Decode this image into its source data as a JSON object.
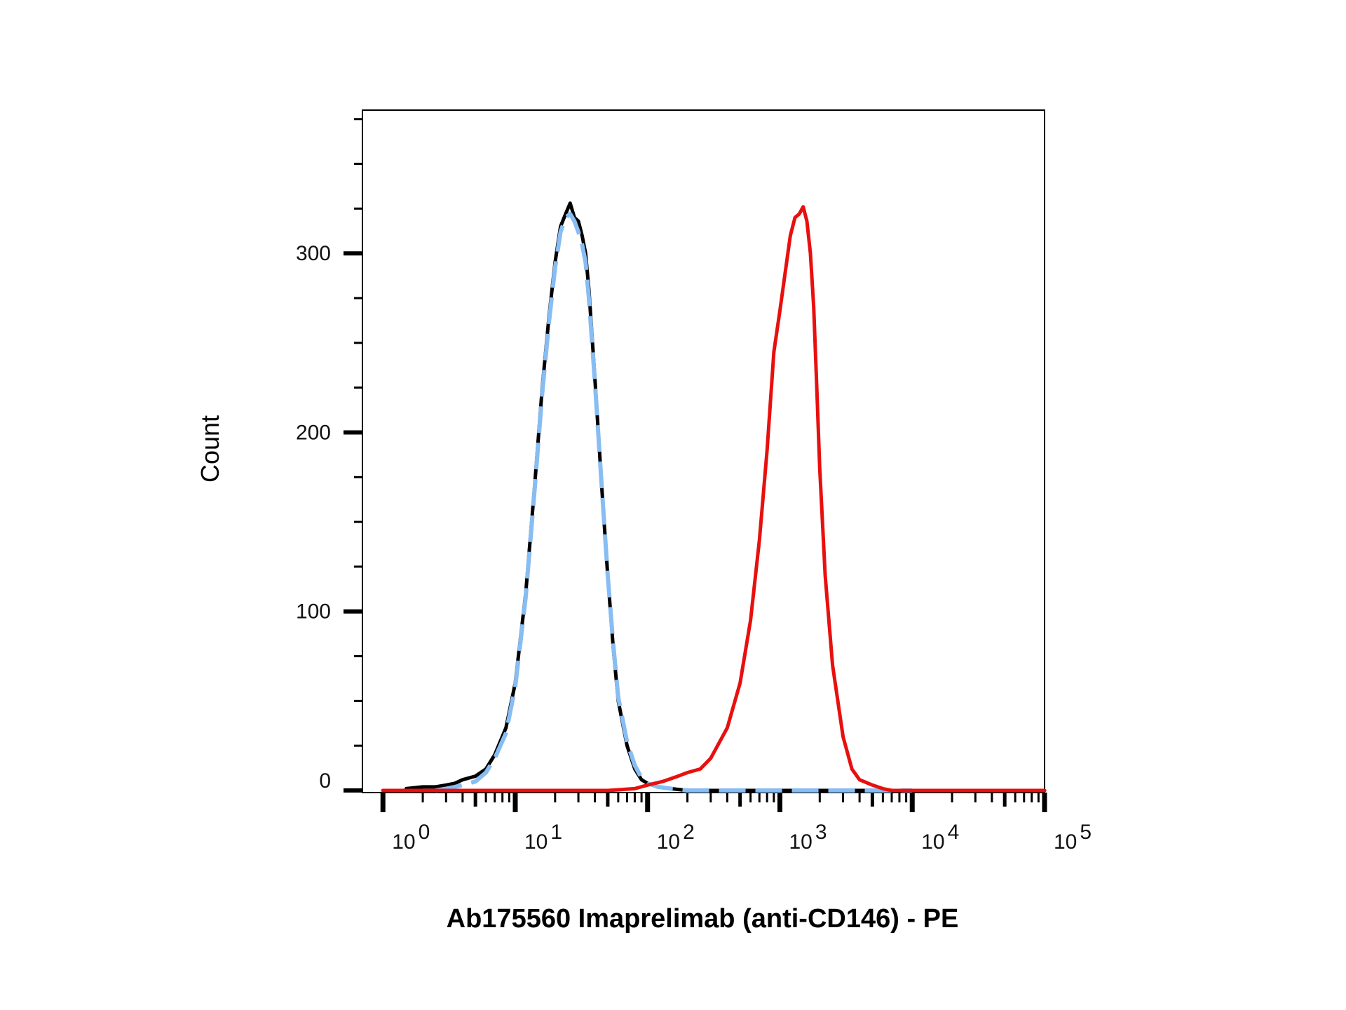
{
  "chart_data": {
    "type": "line",
    "title": "",
    "xlabel": "Ab175560 Imaprelimab (anti-CD146) - PE",
    "ylabel": "Count",
    "x_scale": "log",
    "xlim": [
      0.7,
      100000
    ],
    "ylim": [
      0,
      380
    ],
    "y_ticks": [
      0,
      100,
      200,
      300
    ],
    "x_ticks": [
      1,
      10,
      100,
      1000,
      10000,
      100000
    ],
    "x_tick_labels": [
      {
        "base": "10",
        "exp": "0"
      },
      {
        "base": "10",
        "exp": "1"
      },
      {
        "base": "10",
        "exp": "2"
      },
      {
        "base": "10",
        "exp": "3"
      },
      {
        "base": "10",
        "exp": "4"
      },
      {
        "base": "10",
        "exp": "5"
      }
    ],
    "grid": false,
    "legend": "none",
    "series": [
      {
        "color": "#000000",
        "style": "solid",
        "x": [
          1.5,
          2.0,
          2.5,
          3.0,
          3.5,
          4.0,
          5.0,
          6.0,
          7.0,
          8.5,
          10,
          12,
          14,
          16,
          18,
          20,
          22,
          24,
          26,
          28,
          30,
          32,
          34,
          36,
          40,
          45,
          50,
          55,
          60,
          70,
          80,
          90,
          100,
          120,
          150,
          200,
          300,
          500,
          1000,
          10000,
          100000
        ],
        "y": [
          1,
          2,
          2,
          3,
          4,
          6,
          8,
          12,
          20,
          35,
          60,
          110,
          170,
          225,
          265,
          295,
          315,
          322,
          328,
          320,
          318,
          310,
          300,
          280,
          230,
          170,
          120,
          80,
          50,
          25,
          12,
          6,
          4,
          2,
          1,
          0,
          0,
          0,
          0,
          0,
          0
        ]
      },
      {
        "color": "#87bdf2",
        "style": "dashed",
        "x": [
          2.5,
          3.0,
          3.5,
          4.0,
          5.0,
          6.0,
          7.0,
          8.5,
          10,
          12,
          14,
          16,
          18,
          20,
          22,
          24,
          26,
          28,
          30,
          32,
          34,
          36,
          40,
          45,
          50,
          55,
          60,
          70,
          80,
          90,
          100,
          120,
          150,
          200,
          500,
          1000,
          3000,
          10000
        ],
        "y": [
          0,
          1,
          2,
          3,
          5,
          10,
          18,
          32,
          58,
          108,
          168,
          222,
          262,
          292,
          312,
          320,
          322,
          318,
          312,
          305,
          295,
          275,
          228,
          170,
          120,
          82,
          52,
          27,
          14,
          7,
          4,
          2,
          1,
          0,
          0,
          0,
          0,
          0
        ]
      },
      {
        "color": "#e8100e",
        "style": "solid",
        "x": [
          1,
          50,
          80,
          100,
          130,
          170,
          200,
          250,
          300,
          400,
          500,
          600,
          700,
          800,
          900,
          1000,
          1100,
          1200,
          1300,
          1400,
          1500,
          1600,
          1700,
          1800,
          1900,
          2000,
          2200,
          2500,
          3000,
          3500,
          4000,
          5000,
          6000,
          7000,
          8000,
          10000,
          100000
        ],
        "y": [
          0,
          0,
          1,
          3,
          5,
          8,
          10,
          12,
          18,
          35,
          60,
          95,
          140,
          190,
          245,
          268,
          290,
          310,
          320,
          322,
          326,
          318,
          300,
          270,
          225,
          180,
          120,
          70,
          30,
          12,
          6,
          3,
          1,
          0,
          0,
          0,
          0
        ]
      }
    ]
  }
}
